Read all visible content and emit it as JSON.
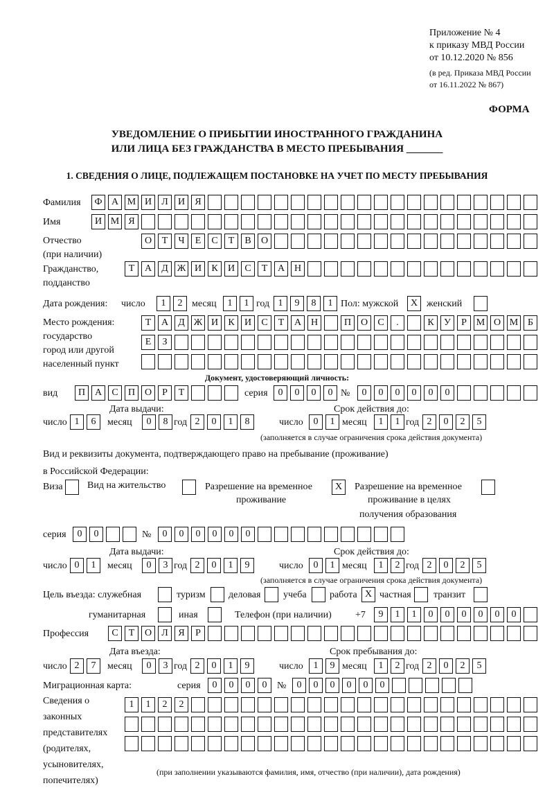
{
  "header": {
    "appendix": [
      "Приложение № 4",
      "к приказу МВД России",
      "от 10.12.2020 № 856"
    ],
    "edition": [
      "(в ред. Приказа МВД России",
      "от 16.11.2022 № 867)"
    ],
    "form_label": "ФОРМА",
    "title_line1": "УВЕДОМЛЕНИЕ О ПРИБЫТИИ ИНОСТРАННОГО ГРАЖДАНИНА",
    "title_line2": "ИЛИ ЛИЦА БЕЗ ГРАЖДАНСТВА В МЕСТО ПРЕБЫВАНИЯ _______",
    "section1": "1. СВЕДЕНИЯ О ЛИЦЕ, ПОДЛЕЖАЩЕМ ПОСТАНОВКЕ НА УЧЕТ ПО МЕСТУ ПРЕБЫВАНИЯ"
  },
  "labels": {
    "surname": "Фамилия",
    "name": "Имя",
    "patronymic": "Отчество",
    "patronymic_note": "(при наличии)",
    "citizenship1": "Гражданство,",
    "citizenship2": "подданство",
    "birth_date": "Дата рождения:",
    "day": "число",
    "month": "месяц",
    "year": "год",
    "sex": "Пол: мужской",
    "female": "женский",
    "birthplace": [
      "Место рождения:",
      "государство",
      "город или другой",
      "населенный пункт"
    ],
    "id_doc": "Документ, удостоверяющий личность:",
    "kind": "вид",
    "series": "серия",
    "number": "№",
    "issue_date": "Дата выдачи:",
    "valid_until": "Срок действия до:",
    "valid_note": "(заполняется в случае ограничения срока действия документа)",
    "right_doc1": "Вид и реквизиты документа, подтверждающего право на пребывание (проживание)",
    "right_doc2": "в Российской Федерации:",
    "visa": "Виза",
    "residence": "Вид на жительство",
    "temp_res": [
      "Разрешение на временное",
      "проживание"
    ],
    "temp_res_edu": [
      "Разрешение на временное",
      "проживание в целях",
      "получения образования"
    ],
    "purpose": "Цель въезда: служебная",
    "tourism": "туризм",
    "business": "деловая",
    "study": "учеба",
    "work": "работа",
    "private": "частная",
    "transit": "транзит",
    "humanitarian": "гуманитарная",
    "other": "иная",
    "phone": "Телефон (при наличии)",
    "phone_prefix": "+7",
    "profession": "Профессия",
    "entry_date": "Дата въезда:",
    "stay_until": "Срок пребывания до:",
    "migration_card": "Миграционная карта:",
    "representatives": [
      "Сведения о",
      "законных",
      "представителях",
      "(родителях,",
      "усыновителях,",
      "попечителях)"
    ],
    "rep_note": "(при заполнении указываются фамилия, имя, отчество (при наличии), дата рождения)"
  },
  "fields": {
    "surname": [
      "Ф",
      "А",
      "М",
      "И",
      "Л",
      "И",
      "Я",
      "",
      "",
      "",
      "",
      "",
      "",
      "",
      "",
      "",
      "",
      "",
      "",
      "",
      "",
      "",
      "",
      "",
      "",
      "",
      ""
    ],
    "name": [
      "И",
      "М",
      "Я",
      "",
      "",
      "",
      "",
      "",
      "",
      "",
      "",
      "",
      "",
      "",
      "",
      "",
      "",
      "",
      "",
      "",
      "",
      "",
      "",
      "",
      "",
      "",
      ""
    ],
    "patronymic": [
      "О",
      "Т",
      "Ч",
      "Е",
      "С",
      "Т",
      "В",
      "О",
      "",
      "",
      "",
      "",
      "",
      "",
      "",
      "",
      "",
      "",
      "",
      "",
      "",
      "",
      "",
      ""
    ],
    "citizenship": [
      "Т",
      "А",
      "Д",
      "Ж",
      "И",
      "К",
      "И",
      "С",
      "Т",
      "А",
      "Н",
      "",
      "",
      "",
      "",
      "",
      "",
      "",
      "",
      "",
      "",
      "",
      "",
      "",
      ""
    ],
    "birth_day": [
      "1",
      "2"
    ],
    "birth_month": [
      "1",
      "1"
    ],
    "birth_year": [
      "1",
      "9",
      "8",
      "1"
    ],
    "sex_male": "X",
    "sex_female": "",
    "birthplace1": [
      "Т",
      "А",
      "Д",
      "Ж",
      "И",
      "К",
      "И",
      "С",
      "Т",
      "А",
      "Н",
      "",
      "П",
      "О",
      "С",
      ".",
      "",
      "К",
      "У",
      "Р",
      "М",
      "О",
      "М",
      "Б"
    ],
    "birthplace2": [
      "Е",
      "З",
      "",
      "",
      "",
      "",
      "",
      "",
      "",
      "",
      "",
      "",
      "",
      "",
      "",
      "",
      "",
      "",
      "",
      "",
      "",
      "",
      "",
      ""
    ],
    "birthplace3": [
      "",
      "",
      "",
      "",
      "",
      "",
      "",
      "",
      "",
      "",
      "",
      "",
      "",
      "",
      "",
      "",
      "",
      "",
      "",
      "",
      "",
      "",
      "",
      ""
    ],
    "id_kind": [
      "П",
      "А",
      "С",
      "П",
      "О",
      "Р",
      "Т",
      "",
      "",
      ""
    ],
    "id_series": [
      "0",
      "0",
      "0",
      "0"
    ],
    "id_number": [
      "0",
      "0",
      "0",
      "0",
      "0",
      "0",
      "",
      "",
      "",
      "",
      ""
    ],
    "id_issue_day": [
      "1",
      "6"
    ],
    "id_issue_month": [
      "0",
      "8"
    ],
    "id_issue_year": [
      "2",
      "0",
      "1",
      "8"
    ],
    "id_valid_day": [
      "0",
      "1"
    ],
    "id_valid_month": [
      "1",
      "1"
    ],
    "id_valid_year": [
      "2",
      "0",
      "2",
      "5"
    ],
    "visa": "",
    "residence": "",
    "temp_res": "X",
    "temp_res_edu": "",
    "rd_series": [
      "0",
      "0",
      "",
      ""
    ],
    "rd_number": [
      "0",
      "0",
      "0",
      "0",
      "0",
      "0",
      "",
      "",
      "",
      "",
      "",
      "",
      "",
      "",
      ""
    ],
    "rd_issue_day": [
      "0",
      "1"
    ],
    "rd_issue_month": [
      "0",
      "3"
    ],
    "rd_issue_year": [
      "2",
      "0",
      "1",
      "9"
    ],
    "rd_valid_day": [
      "0",
      "1"
    ],
    "rd_valid_month": [
      "1",
      "2"
    ],
    "rd_valid_year": [
      "2",
      "0",
      "2",
      "5"
    ],
    "purpose_official": "",
    "purpose_tourism": "",
    "purpose_business": "",
    "purpose_study": "",
    "purpose_work": "X",
    "purpose_private": "",
    "purpose_transit": "",
    "purpose_humanitarian": "",
    "purpose_other": "",
    "phone": [
      "9",
      "1",
      "1",
      "0",
      "0",
      "0",
      "0",
      "0",
      "0",
      ""
    ],
    "profession": [
      "С",
      "Т",
      "О",
      "Л",
      "Я",
      "Р",
      "",
      "",
      "",
      "",
      "",
      "",
      "",
      "",
      "",
      "",
      "",
      "",
      "",
      "",
      "",
      "",
      "",
      "",
      "",
      ""
    ],
    "entry_day": [
      "2",
      "7"
    ],
    "entry_month": [
      "0",
      "3"
    ],
    "entry_year": [
      "2",
      "0",
      "1",
      "9"
    ],
    "stay_day": [
      "1",
      "9"
    ],
    "stay_month": [
      "1",
      "2"
    ],
    "stay_year": [
      "2",
      "0",
      "2",
      "5"
    ],
    "mc_series": [
      "0",
      "0",
      "0",
      "0"
    ],
    "mc_number": [
      "0",
      "0",
      "0",
      "0",
      "0",
      "0",
      "",
      "",
      "",
      "",
      ""
    ],
    "rep1": [
      "1",
      "1",
      "2",
      "2",
      "",
      "",
      "",
      "",
      "",
      "",
      "",
      "",
      "",
      "",
      "",
      "",
      "",
      "",
      "",
      "",
      "",
      "",
      "",
      "",
      ""
    ],
    "rep2": [
      "",
      "",
      "",
      "",
      "",
      "",
      "",
      "",
      "",
      "",
      "",
      "",
      "",
      "",
      "",
      "",
      "",
      "",
      "",
      "",
      "",
      "",
      "",
      "",
      ""
    ],
    "rep3": [
      "",
      "",
      "",
      "",
      "",
      "",
      "",
      "",
      "",
      "",
      "",
      "",
      "",
      "",
      "",
      "",
      "",
      "",
      "",
      "",
      "",
      "",
      "",
      "",
      ""
    ]
  }
}
